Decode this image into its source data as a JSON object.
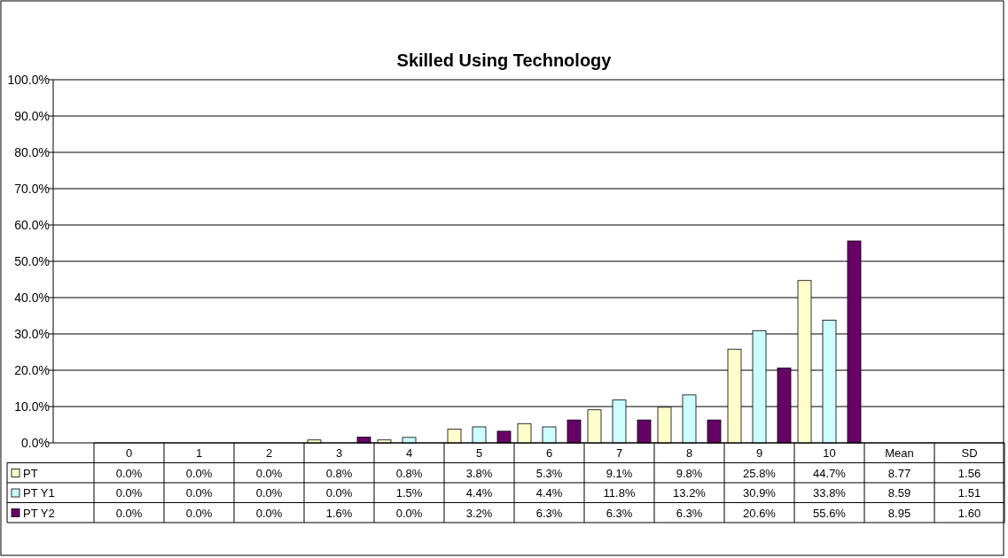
{
  "chart_data": {
    "type": "bar",
    "title": "Skilled Using Technology",
    "categories": [
      "0",
      "1",
      "2",
      "3",
      "4",
      "5",
      "6",
      "7",
      "8",
      "9",
      "10",
      "Mean",
      "SD"
    ],
    "series": [
      {
        "name": "PT",
        "color": "#ffffcc",
        "values": [
          0,
          0,
          0,
          0.8,
          0.8,
          3.8,
          5.3,
          9.1,
          9.8,
          25.8,
          44.7,
          null,
          null
        ],
        "value_labels": [
          "0.0%",
          "0.0%",
          "0.0%",
          "0.8%",
          "0.8%",
          "3.8%",
          "5.3%",
          "9.1%",
          "9.8%",
          "25.8%",
          "44.7%",
          "8.77",
          "1.56"
        ]
      },
      {
        "name": "PT Y1",
        "color": "#ccffff",
        "values": [
          0,
          0,
          0,
          0,
          1.5,
          4.4,
          4.4,
          11.8,
          13.2,
          30.9,
          33.8,
          null,
          null
        ],
        "value_labels": [
          "0.0%",
          "0.0%",
          "0.0%",
          "0.0%",
          "1.5%",
          "4.4%",
          "4.4%",
          "11.8%",
          "13.2%",
          "30.9%",
          "33.8%",
          "8.59",
          "1.51"
        ]
      },
      {
        "name": "PT Y2",
        "color": "#660066",
        "values": [
          0,
          0,
          0,
          1.6,
          0,
          3.2,
          6.3,
          6.3,
          6.3,
          20.6,
          55.6,
          null,
          null
        ],
        "value_labels": [
          "0.0%",
          "0.0%",
          "0.0%",
          "1.6%",
          "0.0%",
          "3.2%",
          "6.3%",
          "6.3%",
          "6.3%",
          "20.6%",
          "55.6%",
          "8.95",
          "1.60"
        ]
      }
    ],
    "ylim": [
      0,
      100
    ],
    "yticks": [
      {
        "value": 0,
        "label": "0.0%"
      },
      {
        "value": 10,
        "label": "10.0%"
      },
      {
        "value": 20,
        "label": "20.0%"
      },
      {
        "value": 30,
        "label": "30.0%"
      },
      {
        "value": 40,
        "label": "40.0%"
      },
      {
        "value": 50,
        "label": "50.0%"
      },
      {
        "value": 60,
        "label": "60.0%"
      },
      {
        "value": 70,
        "label": "70.0%"
      },
      {
        "value": 80,
        "label": "80.0%"
      },
      {
        "value": 90,
        "label": "90.0%"
      },
      {
        "value": 100,
        "label": "100.0%"
      }
    ],
    "grid": "y",
    "legend": "bottom"
  }
}
